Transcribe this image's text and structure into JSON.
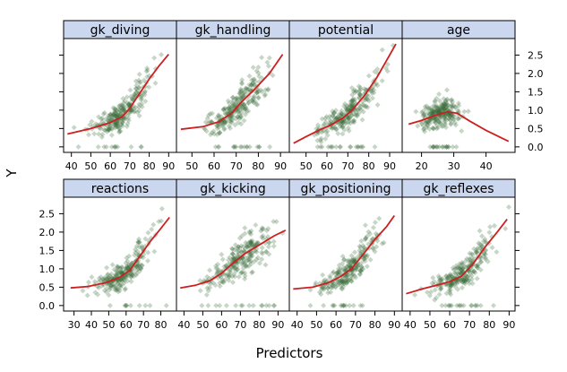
{
  "chart_data": {
    "type": "scatter",
    "xlabel": "Predictors",
    "ylabel": "Y",
    "y_ticks": [
      "0.0",
      "0.5",
      "1.0",
      "1.5",
      "2.0",
      "2.5"
    ],
    "ylim": [
      -0.15,
      2.95
    ],
    "point_color": "#3a6b3a",
    "smooth_color": "#cc2020",
    "strip_color": "#cad7ee",
    "panels": [
      {
        "name": "gk_diving",
        "xlim": [
          36,
          94
        ],
        "x_ticks": [
          "40",
          "50",
          "60",
          "70",
          "80",
          "90"
        ],
        "smooth": [
          [
            38,
            0.35
          ],
          [
            50,
            0.5
          ],
          [
            60,
            0.66
          ],
          [
            66,
            0.82
          ],
          [
            70,
            1.05
          ],
          [
            75,
            1.45
          ],
          [
            80,
            1.85
          ],
          [
            85,
            2.2
          ],
          [
            90,
            2.52
          ]
        ]
      },
      {
        "name": "gk_handling",
        "xlim": [
          43,
          94
        ],
        "x_ticks": [
          "50",
          "60",
          "70",
          "80",
          "90"
        ],
        "smooth": [
          [
            45,
            0.48
          ],
          [
            55,
            0.55
          ],
          [
            62,
            0.68
          ],
          [
            68,
            0.92
          ],
          [
            72,
            1.2
          ],
          [
            78,
            1.55
          ],
          [
            85,
            2.0
          ],
          [
            91,
            2.52
          ]
        ]
      },
      {
        "name": "potential",
        "xlim": [
          42,
          96
        ],
        "x_ticks": [
          "50",
          "60",
          "70",
          "80",
          "90"
        ],
        "smooth": [
          [
            44,
            0.1
          ],
          [
            50,
            0.28
          ],
          [
            56,
            0.45
          ],
          [
            62,
            0.6
          ],
          [
            68,
            0.8
          ],
          [
            72,
            1.0
          ],
          [
            78,
            1.4
          ],
          [
            84,
            1.9
          ],
          [
            90,
            2.5
          ],
          [
            93,
            2.8
          ]
        ]
      },
      {
        "name": "age",
        "xlim": [
          14,
          49
        ],
        "x_ticks": [
          "20",
          "30",
          "40"
        ],
        "smooth": [
          [
            16,
            0.62
          ],
          [
            20,
            0.72
          ],
          [
            24,
            0.85
          ],
          [
            28,
            0.95
          ],
          [
            31,
            0.92
          ],
          [
            35,
            0.7
          ],
          [
            40,
            0.45
          ],
          [
            44,
            0.28
          ],
          [
            47,
            0.15
          ]
        ]
      },
      {
        "name": "reactions",
        "xlim": [
          24,
          89
        ],
        "x_ticks": [
          "30",
          "40",
          "50",
          "60",
          "70",
          "80"
        ],
        "smooth": [
          [
            28,
            0.48
          ],
          [
            38,
            0.52
          ],
          [
            48,
            0.62
          ],
          [
            56,
            0.76
          ],
          [
            62,
            0.95
          ],
          [
            68,
            1.35
          ],
          [
            74,
            1.75
          ],
          [
            80,
            2.1
          ],
          [
            85,
            2.4
          ]
        ]
      },
      {
        "name": "gk_kicking",
        "xlim": [
          36,
          96
        ],
        "x_ticks": [
          "40",
          "50",
          "60",
          "70",
          "80",
          "90"
        ],
        "smooth": [
          [
            38,
            0.48
          ],
          [
            46,
            0.55
          ],
          [
            54,
            0.68
          ],
          [
            60,
            0.88
          ],
          [
            66,
            1.15
          ],
          [
            72,
            1.4
          ],
          [
            80,
            1.65
          ],
          [
            88,
            1.9
          ],
          [
            94,
            2.05
          ]
        ]
      },
      {
        "name": "gk_positioning",
        "xlim": [
          36,
          94
        ],
        "x_ticks": [
          "40",
          "50",
          "60",
          "70",
          "80",
          "90"
        ],
        "smooth": [
          [
            38,
            0.45
          ],
          [
            48,
            0.5
          ],
          [
            56,
            0.62
          ],
          [
            62,
            0.78
          ],
          [
            68,
            1.0
          ],
          [
            74,
            1.4
          ],
          [
            80,
            1.8
          ],
          [
            86,
            2.15
          ],
          [
            90,
            2.45
          ]
        ]
      },
      {
        "name": "gk_reflexes",
        "xlim": [
          36,
          93
        ],
        "x_ticks": [
          "40",
          "50",
          "60",
          "70",
          "80",
          "90"
        ],
        "smooth": [
          [
            38,
            0.32
          ],
          [
            46,
            0.45
          ],
          [
            54,
            0.56
          ],
          [
            60,
            0.65
          ],
          [
            66,
            0.8
          ],
          [
            72,
            1.15
          ],
          [
            78,
            1.6
          ],
          [
            84,
            2.0
          ],
          [
            89,
            2.35
          ]
        ]
      }
    ]
  }
}
